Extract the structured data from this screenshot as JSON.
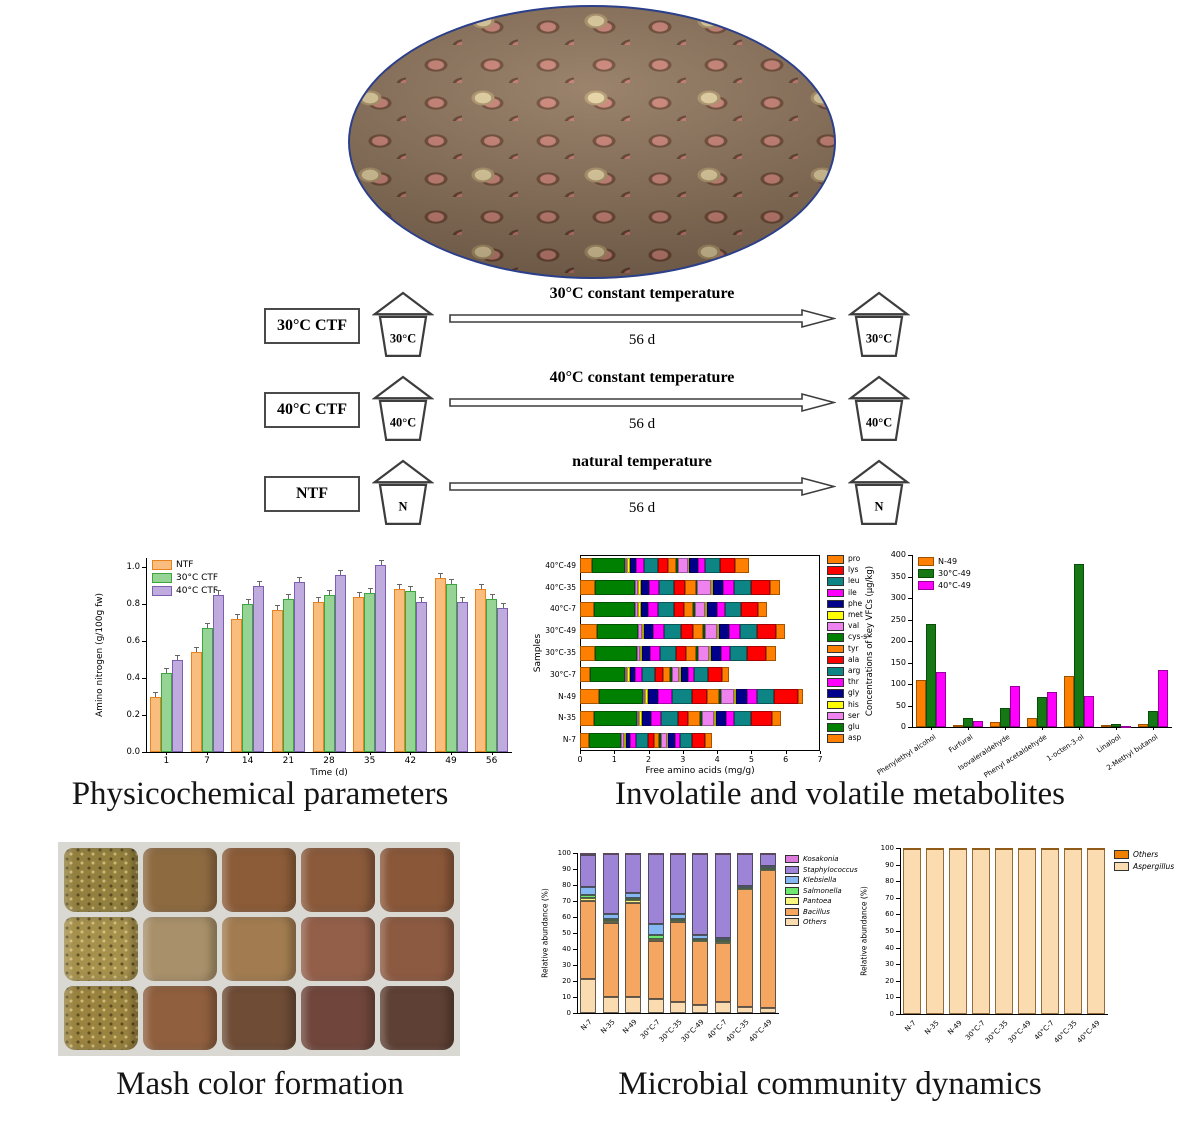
{
  "flow": {
    "rows": [
      {
        "label": "30°C CTF",
        "jar_start": "30°C",
        "arrow_top": "30°C constant temperature",
        "arrow_bottom": "56 d",
        "jar_end": "30°C"
      },
      {
        "label": "40°C CTF",
        "jar_start": "40°C",
        "arrow_top": "40°C constant temperature",
        "arrow_bottom": "56 d",
        "jar_end": "40°C"
      },
      {
        "label": "NTF",
        "jar_start": "N",
        "arrow_top": "natural temperature",
        "arrow_bottom": "56 d",
        "jar_end": "N"
      }
    ]
  },
  "sections": {
    "physicochemical": "Physicochemical parameters",
    "metabolites": "Involatile and volatile metabolites",
    "mash": "Mash color formation",
    "microbial": "Microbial community dynamics"
  },
  "mash": {
    "colors": [
      "#93803e",
      "#8e6a41",
      "#8c5c38",
      "#8b5a3b",
      "#8a5739",
      "#a5904c",
      "#a8906a",
      "#a27c50",
      "#935f49",
      "#8c5a41",
      "#9a833f",
      "#8f5f3e",
      "#6e4c36",
      "#70463c",
      "#5e4034"
    ]
  },
  "chart_data": [
    {
      "id": "amino_nitrogen",
      "type": "bar",
      "xlabel": "Time (d)",
      "ylabel": "Amino nitrogen (g/100g fw)",
      "categories": [
        "1",
        "7",
        "14",
        "21",
        "28",
        "35",
        "42",
        "49",
        "56"
      ],
      "ylim": [
        0,
        1.05
      ],
      "yticks": [
        0.0,
        0.2,
        0.4,
        0.6,
        0.8,
        1.0
      ],
      "legend_position": "top-left",
      "series": [
        {
          "name": "NTF",
          "color": "#F9BE7E",
          "border": "#E8821E",
          "values": [
            0.3,
            0.54,
            0.72,
            0.77,
            0.81,
            0.84,
            0.88,
            0.94,
            0.88
          ]
        },
        {
          "name": "30°C CTF",
          "color": "#96D496",
          "border": "#3DA53D",
          "values": [
            0.43,
            0.67,
            0.8,
            0.83,
            0.85,
            0.86,
            0.87,
            0.91,
            0.83
          ]
        },
        {
          "name": "40°C CTF",
          "color": "#BFABDE",
          "border": "#7E5FAF",
          "values": [
            0.5,
            0.85,
            0.9,
            0.92,
            0.96,
            1.01,
            0.81,
            0.81,
            0.78
          ]
        }
      ]
    },
    {
      "id": "free_amino_acids",
      "type": "bar-horizontal-stacked",
      "xlabel": "Free amino acids (mg/g)",
      "ylabel": "Samples",
      "categories": [
        "40°C-49",
        "40°C-35",
        "40°C-7",
        "30°C-49",
        "30°C-35",
        "30°C-7",
        "N-49",
        "N-35",
        "N-7"
      ],
      "xlim": [
        0,
        7
      ],
      "xticks": [
        0,
        1,
        2,
        3,
        4,
        5,
        6,
        7
      ],
      "legend_position": "right",
      "series": [
        {
          "name": "asp",
          "color": "#FF8000",
          "values": [
            0.35,
            0.45,
            0.4,
            0.5,
            0.45,
            0.3,
            0.55,
            0.4,
            0.25
          ]
        },
        {
          "name": "glu",
          "color": "#008000",
          "values": [
            0.95,
            1.15,
            1.2,
            1.2,
            1.2,
            1.0,
            1.3,
            1.25,
            0.95
          ]
        },
        {
          "name": "ser",
          "color": "#EE82EE",
          "values": [
            0.08,
            0.1,
            0.1,
            0.1,
            0.1,
            0.08,
            0.05,
            0.08,
            0.08
          ]
        },
        {
          "name": "his",
          "color": "#FFFF00",
          "values": [
            0.07,
            0.08,
            0.08,
            0.08,
            0.07,
            0.07,
            0.08,
            0.08,
            0.06
          ]
        },
        {
          "name": "gly",
          "color": "#00008B",
          "values": [
            0.18,
            0.22,
            0.2,
            0.25,
            0.22,
            0.15,
            0.3,
            0.25,
            0.12
          ]
        },
        {
          "name": "thr",
          "color": "#FF00FF",
          "values": [
            0.25,
            0.3,
            0.3,
            0.32,
            0.3,
            0.2,
            0.4,
            0.3,
            0.18
          ]
        },
        {
          "name": "arg",
          "color": "#0E8585",
          "values": [
            0.4,
            0.45,
            0.45,
            0.5,
            0.45,
            0.4,
            0.6,
            0.5,
            0.33
          ]
        },
        {
          "name": "ala",
          "color": "#FF0000",
          "values": [
            0.28,
            0.32,
            0.3,
            0.35,
            0.3,
            0.22,
            0.42,
            0.3,
            0.18
          ]
        },
        {
          "name": "tyr",
          "color": "#FF8000",
          "values": [
            0.25,
            0.3,
            0.28,
            0.3,
            0.3,
            0.2,
            0.35,
            0.35,
            0.15
          ]
        },
        {
          "name": "cys-s",
          "color": "#008000",
          "values": [
            0.05,
            0.05,
            0.05,
            0.05,
            0.05,
            0.05,
            0.05,
            0.05,
            0.05
          ]
        },
        {
          "name": "val",
          "color": "#EE82EE",
          "values": [
            0.28,
            0.4,
            0.3,
            0.35,
            0.32,
            0.22,
            0.4,
            0.35,
            0.18
          ]
        },
        {
          "name": "met",
          "color": "#FFFF00",
          "values": [
            0.05,
            0.06,
            0.05,
            0.06,
            0.06,
            0.05,
            0.06,
            0.06,
            0.05
          ]
        },
        {
          "name": "phe",
          "color": "#00008B",
          "values": [
            0.25,
            0.3,
            0.28,
            0.3,
            0.28,
            0.2,
            0.3,
            0.28,
            0.18
          ]
        },
        {
          "name": "ile",
          "color": "#FF00FF",
          "values": [
            0.22,
            0.3,
            0.25,
            0.3,
            0.28,
            0.18,
            0.3,
            0.25,
            0.15
          ]
        },
        {
          "name": "leu",
          "color": "#0E8585",
          "values": [
            0.42,
            0.5,
            0.45,
            0.5,
            0.5,
            0.4,
            0.5,
            0.5,
            0.37
          ]
        },
        {
          "name": "lys",
          "color": "#FF0000",
          "values": [
            0.45,
            0.55,
            0.5,
            0.55,
            0.55,
            0.42,
            0.7,
            0.6,
            0.37
          ]
        },
        {
          "name": "pro",
          "color": "#FF8000",
          "values": [
            0.4,
            0.3,
            0.25,
            0.28,
            0.3,
            0.2,
            0.15,
            0.25,
            0.2
          ]
        }
      ]
    },
    {
      "id": "vfc",
      "type": "bar",
      "xlabel": "",
      "ylabel": "Concentrations of key VFCs (μg/kg)",
      "categories": [
        "Phenylethyl alcohol",
        "Furfural",
        "Isovaleraldehyde",
        "Phenyl acetaldehyde",
        "1-octen-3-ol",
        "Linalool",
        "2-Methyl butanol"
      ],
      "ylim": [
        0,
        400
      ],
      "yticks": [
        0,
        50,
        100,
        150,
        200,
        250,
        300,
        350,
        400
      ],
      "legend_position": "top-left",
      "series": [
        {
          "name": "N-49",
          "color": "#FF8000",
          "border": "#9a5200",
          "values": [
            110,
            4,
            12,
            20,
            118,
            5,
            8
          ]
        },
        {
          "name": "30°C-49",
          "color": "#157815",
          "border": "#0a4d0a",
          "values": [
            240,
            20,
            45,
            70,
            378,
            7,
            38
          ]
        },
        {
          "name": "40°C-49",
          "color": "#FF00FF",
          "border": "#99009b",
          "values": [
            128,
            15,
            95,
            82,
            73,
            3,
            132
          ]
        }
      ]
    },
    {
      "id": "bacteria",
      "type": "bar-stacked-100",
      "xlabel": "",
      "ylabel": "Relative abundance (%)",
      "categories": [
        "N-7",
        "N-35",
        "N-49",
        "30°C-7",
        "30°C-35",
        "30°C-49",
        "40°C-7",
        "40°C-35",
        "40°C-49"
      ],
      "ylim": [
        0,
        100
      ],
      "yticks": [
        0,
        10,
        20,
        30,
        40,
        50,
        60,
        70,
        80,
        90,
        100
      ],
      "legend_position": "right",
      "series": [
        {
          "name": "Others",
          "color": "#FBDCB1",
          "values": [
            21,
            10,
            10,
            9,
            7,
            5,
            7,
            4,
            3
          ]
        },
        {
          "name": "Bacillus",
          "color": "#F5A660",
          "values": [
            49,
            46,
            59,
            36,
            50,
            40,
            37,
            74,
            87
          ]
        },
        {
          "name": "Pantoea",
          "color": "#F7F77E",
          "values": [
            2,
            1.5,
            1.5,
            1,
            1,
            0.5,
            0.5,
            0.3,
            0.3
          ]
        },
        {
          "name": "Salmonella",
          "color": "#6FE86F",
          "values": [
            2,
            1,
            1.5,
            2.5,
            1,
            1,
            1,
            0.5,
            0.5
          ]
        },
        {
          "name": "Klebsiella",
          "color": "#85B8F2",
          "values": [
            5,
            3.5,
            3,
            7,
            3,
            2,
            1.5,
            0.7,
            1.2
          ]
        },
        {
          "name": "Staphylococcus",
          "color": "#9D84D6",
          "values": [
            20,
            37.5,
            24.5,
            44,
            37.5,
            51,
            52.5,
            20,
            7.5
          ]
        },
        {
          "name": "Kosakonia",
          "color": "#DD7BDD",
          "values": [
            1,
            0.5,
            0.5,
            0.5,
            0.5,
            0.5,
            0.5,
            0.5,
            0.5
          ]
        }
      ]
    },
    {
      "id": "fungi",
      "type": "bar-stacked-100",
      "xlabel": "",
      "ylabel": "Relative abundance (%)",
      "categories": [
        "N-7",
        "N-35",
        "N-49",
        "30°C-7",
        "30°C-35",
        "30°C-49",
        "40°C-7",
        "40°C-35",
        "40°C-49"
      ],
      "ylim": [
        0,
        100
      ],
      "yticks": [
        0,
        10,
        20,
        30,
        40,
        50,
        60,
        70,
        80,
        90,
        100
      ],
      "legend_position": "top-right",
      "series": [
        {
          "name": "Aspergillus",
          "color": "#FBDCB1",
          "values": [
            99.7,
            99.7,
            99.7,
            99.7,
            99.7,
            99.7,
            99.7,
            99.7,
            99.7
          ]
        },
        {
          "name": "Others",
          "color": "#F08000",
          "values": [
            0.3,
            0.3,
            0.3,
            0.3,
            0.3,
            0.3,
            0.3,
            0.3,
            0.3
          ]
        }
      ]
    }
  ]
}
